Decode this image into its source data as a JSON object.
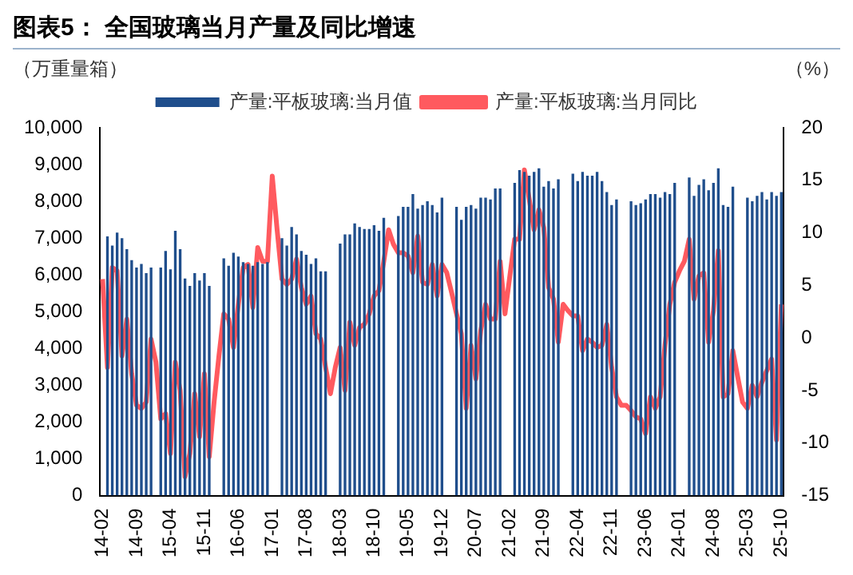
{
  "chart_data": {
    "type": "bar",
    "title": "图表5：  全国玻璃当月产量及同比增速",
    "ylabel": "（万重量箱）",
    "y2label": "（%）",
    "categories": [
      "14-02",
      null,
      null,
      null,
      null,
      null,
      null,
      "14-09",
      null,
      null,
      null,
      null,
      null,
      null,
      "15-04",
      null,
      null,
      null,
      null,
      null,
      null,
      "15-11",
      null,
      null,
      null,
      null,
      null,
      null,
      "16-06",
      null,
      null,
      null,
      null,
      null,
      null,
      "17-01",
      null,
      null,
      null,
      null,
      null,
      null,
      "17-08",
      null,
      null,
      null,
      null,
      null,
      null,
      "18-03",
      null,
      null,
      null,
      null,
      null,
      null,
      "18-10",
      null,
      null,
      null,
      null,
      null,
      null,
      "19-05",
      null,
      null,
      null,
      null,
      null,
      null,
      "19-12",
      null,
      null,
      null,
      null,
      null,
      null,
      "20-07",
      null,
      null,
      null,
      null,
      null,
      null,
      "21-02",
      null,
      null,
      null,
      null,
      null,
      null,
      "21-09",
      null,
      null,
      null,
      null,
      null,
      null,
      "22-04",
      null,
      null,
      null,
      null,
      null,
      null,
      "22-11",
      null,
      null,
      null,
      null,
      null,
      null,
      "23-06",
      null,
      null,
      null,
      null,
      null,
      null,
      "24-01",
      null,
      null,
      null,
      null,
      null,
      null,
      "24-08",
      null,
      null,
      null,
      null,
      null,
      null,
      "25-03",
      null,
      null,
      null,
      null,
      null,
      null,
      "25-10"
    ],
    "series": [
      {
        "name": "产量:平板玻璃:当月值",
        "color": "#1f4e8c",
        "values": [
          null,
          7050,
          6800,
          7150,
          7000,
          6700,
          6400,
          6200,
          6300,
          6050,
          6200,
          null,
          6200,
          6650,
          6150,
          7200,
          6700,
          5900,
          5700,
          6050,
          5850,
          6050,
          5700,
          null,
          null,
          6450,
          6250,
          6600,
          6500,
          6350,
          6300,
          6250,
          6350,
          6300,
          6350,
          null,
          null,
          7000,
          6800,
          7300,
          7100,
          6650,
          6550,
          6300,
          6450,
          6100,
          6100,
          null,
          null,
          6850,
          7100,
          7100,
          7400,
          7300,
          7250,
          7250,
          7350,
          7200,
          7550,
          null,
          null,
          7600,
          7850,
          7850,
          8200,
          7800,
          7900,
          8000,
          7900,
          7700,
          8100,
          null,
          null,
          7850,
          7500,
          7850,
          7900,
          7800,
          8100,
          8100,
          8050,
          8350,
          8350,
          null,
          null,
          8500,
          8850,
          8800,
          8700,
          8800,
          8900,
          8400,
          8550,
          8350,
          8600,
          null,
          null,
          8750,
          8550,
          8800,
          8700,
          8700,
          8800,
          8550,
          8250,
          7900,
          8050,
          null,
          null,
          8000,
          7900,
          7950,
          8050,
          8200,
          8200,
          8100,
          8250,
          8200,
          8500,
          null,
          null,
          8650,
          8150,
          8450,
          8600,
          8300,
          8500,
          8900,
          7900,
          7850,
          8400,
          null,
          null,
          8100,
          8000,
          8150,
          8250,
          8050,
          8250,
          8150,
          8250
        ]
      },
      {
        "name": "产量:平板玻璃:当月同比",
        "type": "line",
        "axis": "y2",
        "color": "#ff5a5f",
        "values": [
          5.6,
          -2.8,
          6.7,
          6.4,
          -1.7,
          1.8,
          -3.4,
          -6.4,
          -6.7,
          -6.1,
          -0.1,
          -2.3,
          -7.7,
          -7.2,
          -11,
          -2.3,
          -5,
          -13.2,
          -11,
          -5.3,
          -9.4,
          -3.4,
          -11.3,
          -6.1,
          -1.7,
          2.3,
          1.8,
          -0.9,
          3.2,
          6.7,
          7,
          2.9,
          8.6,
          7.3,
          7.3,
          15.4,
          10.3,
          5.6,
          5.1,
          5.6,
          7.5,
          4.8,
          3.2,
          4,
          0.4,
          -0.1,
          -2.8,
          -5.3,
          -2.8,
          -0.9,
          -5,
          1.5,
          -0.7,
          1,
          1.3,
          2.3,
          4,
          4.5,
          7.3,
          10.3,
          8.9,
          8.1,
          8.1,
          7.8,
          6.2,
          9.7,
          5.3,
          5.1,
          7,
          4,
          7,
          6.2,
          4.3,
          2.3,
          0.4,
          -6.7,
          -0.7,
          -3.9,
          0.7,
          3.2,
          1.8,
          1.8,
          7.3,
          2.3,
          5.9,
          9.4,
          9.4,
          16,
          13.2,
          10.3,
          12.2,
          10.5,
          4.8,
          3.7,
          -0.4,
          3.2,
          2.6,
          2.1,
          2.1,
          -1.2,
          -0.1,
          -0.4,
          -0.9,
          -0.7,
          1.3,
          -2.8,
          -5.6,
          -6.4,
          -6.4,
          -6.9,
          -7.5,
          -7.7,
          -9.1,
          -5.6,
          -6.7,
          -5.6,
          -0.7,
          3.2,
          5.3,
          6.4,
          7.3,
          9.4,
          3.7,
          5.9,
          6.2,
          -0.4,
          2.6,
          8.3,
          -5.6,
          -5.3,
          -1.2,
          -3.7,
          -6.1,
          -6.7,
          -4.5,
          -5.6,
          -4.2,
          -3.1,
          -2,
          -9.7,
          3.2
        ]
      }
    ],
    "ylim": [
      0,
      10000
    ],
    "yticks": [
      0,
      {
        "value": 1000,
        "label": "1,000"
      },
      {
        "value": 2000,
        "label": "2,000"
      },
      {
        "value": 3000,
        "label": "3,000"
      },
      {
        "value": 4000,
        "label": "4,000"
      },
      {
        "value": 5000,
        "label": "5,000"
      },
      {
        "value": 6000,
        "label": "6,000"
      },
      {
        "value": 7000,
        "label": "7,000"
      },
      {
        "value": 8000,
        "label": "8,000"
      },
      {
        "value": 9000,
        "label": "9,000"
      },
      {
        "value": 10000,
        "label": "10,000"
      }
    ],
    "y2lim": [
      -15,
      20
    ],
    "y2ticks": [
      -15,
      -10,
      -5,
      0,
      5,
      10,
      15,
      20
    ],
    "grid": false,
    "legend": "top",
    "marker": "none",
    "line_style": "solid"
  }
}
